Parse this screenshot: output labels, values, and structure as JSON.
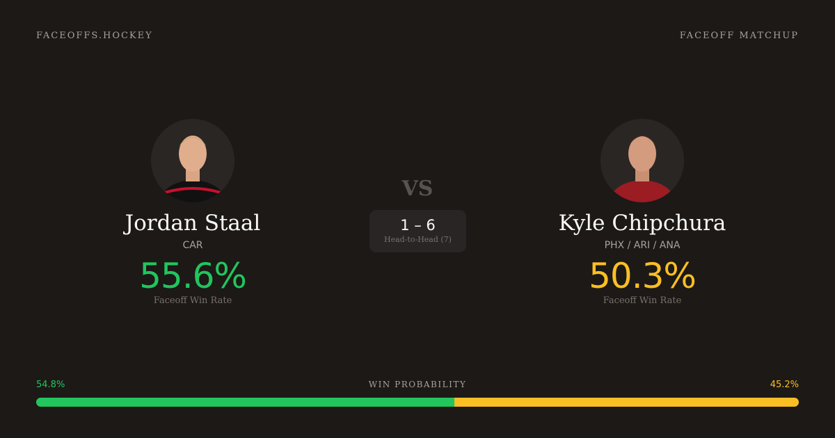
{
  "header": {
    "brand": "FACEOFFS.HOCKEY",
    "title": "FACEOFF MATCHUP"
  },
  "colors": {
    "left": "#22c55e",
    "right": "#fbbf24",
    "background": "#1c1917"
  },
  "left": {
    "name": "Jordan Staal",
    "team": "CAR",
    "win_rate": "55.6%",
    "win_rate_label": "Faceoff Win Rate",
    "avatar": "player-photo"
  },
  "right": {
    "name": "Kyle Chipchura",
    "team": "PHX / ARI / ANA",
    "win_rate": "50.3%",
    "win_rate_label": "Faceoff Win Rate",
    "avatar": "player-photo"
  },
  "vs": "VS",
  "head_to_head": {
    "score": "1 – 6",
    "label": "Head-to-Head (7)"
  },
  "win_probability": {
    "label": "WIN PROBABILITY",
    "left": "54.8%",
    "right": "45.2%",
    "left_value": 54.8,
    "right_value": 45.2
  }
}
